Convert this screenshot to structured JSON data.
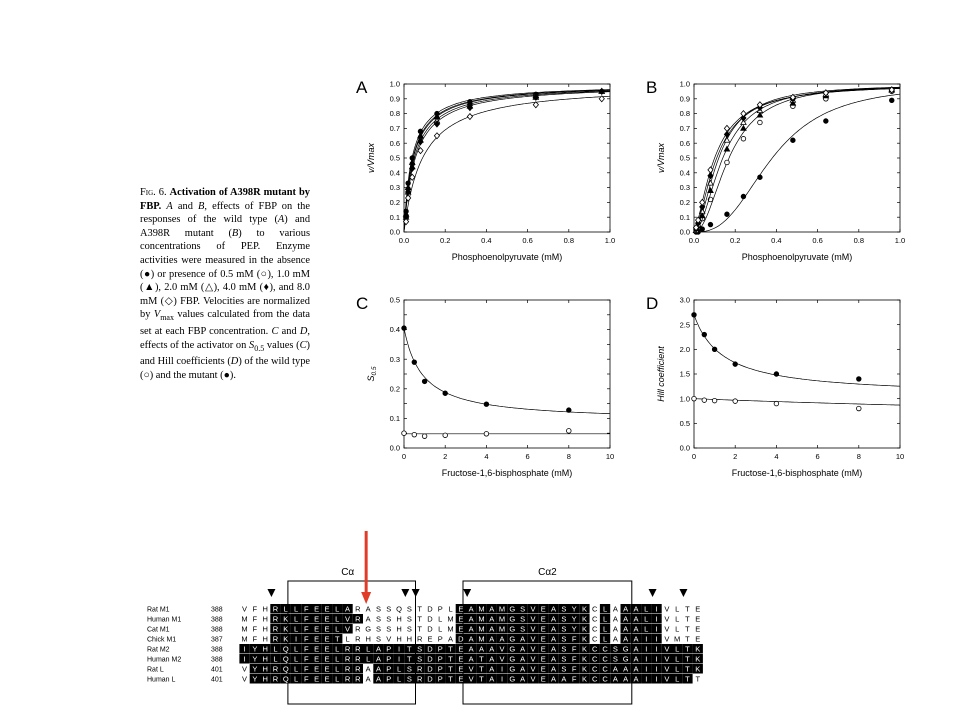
{
  "caption": {
    "fig_label": "Fig. 6.",
    "title": "Activation of A398R mutant by FBP.",
    "segments": [
      {
        "t": " "
      },
      {
        "t": "A",
        "i": 1
      },
      {
        "t": " and "
      },
      {
        "t": "B",
        "i": 1
      },
      {
        "t": ", effects of FBP on the responses of the wild type ("
      },
      {
        "t": "A",
        "i": 1
      },
      {
        "t": ") and A398R mutant ("
      },
      {
        "t": "B",
        "i": 1
      },
      {
        "t": ") to various concentrations of PEP. Enzyme activities were measured in the absence (●) or presence of 0.5 mM (○), 1.0 mM (▲), 2.0 mM (△), 4.0 mM (♦), and 8.0 mM (◇) FBP. Velocities are normalized by "
      },
      {
        "t": "V",
        "i": 1
      },
      {
        "t": "max",
        "sub": 1
      },
      {
        "t": " values calculated from the data set at each FBP concentration. "
      },
      {
        "t": "C",
        "i": 1
      },
      {
        "t": " and "
      },
      {
        "t": "D",
        "i": 1
      },
      {
        "t": ", effects of the activator on "
      },
      {
        "t": "S",
        "i": 1
      },
      {
        "t": "0.5",
        "sub": 1
      },
      {
        "t": " values ("
      },
      {
        "t": "C",
        "i": 1
      },
      {
        "t": ") and Hill coefficients ("
      },
      {
        "t": "D",
        "i": 1
      },
      {
        "t": ") of the wild type (○) and the mutant (●)."
      }
    ]
  },
  "chart_data": [
    {
      "panel": "A",
      "type": "scatter",
      "xlabel": "Phosphoenolpyruvate (mM)",
      "ylabel": "v/Vmax",
      "xlim": [
        0,
        1.0
      ],
      "ylim": [
        0,
        1.0
      ],
      "xticks": [
        0.0,
        0.2,
        0.4,
        0.6,
        0.8,
        1.0
      ],
      "yticks": [
        0.0,
        0.1,
        0.2,
        0.3,
        0.4,
        0.5,
        0.6,
        0.7,
        0.8,
        0.9,
        1.0
      ],
      "tick_decimals": 1,
      "curve": "hill",
      "x": [
        0.01,
        0.02,
        0.04,
        0.08,
        0.16,
        0.32,
        0.64,
        0.96
      ],
      "series": [
        {
          "marker": "filled-circle",
          "values": [
            0.14,
            0.33,
            0.5,
            0.68,
            0.8,
            0.88,
            0.93,
            0.95
          ],
          "fit": {
            "vmax": 1.0,
            "k": 0.039,
            "n": 1.0
          }
        },
        {
          "marker": "open-circle",
          "values": [
            0.11,
            0.29,
            0.46,
            0.64,
            0.77,
            0.86,
            0.92,
            0.95
          ],
          "fit": {
            "vmax": 1.0,
            "k": 0.045,
            "n": 1.0
          }
        },
        {
          "marker": "filled-triangle",
          "values": [
            0.12,
            0.3,
            0.47,
            0.65,
            0.78,
            0.87,
            0.92,
            0.95
          ],
          "fit": {
            "vmax": 1.0,
            "k": 0.043,
            "n": 1.0
          }
        },
        {
          "marker": "open-triangle",
          "values": [
            0.1,
            0.27,
            0.44,
            0.62,
            0.75,
            0.85,
            0.91,
            0.95
          ],
          "fit": {
            "vmax": 1.0,
            "k": 0.05,
            "n": 1.0
          }
        },
        {
          "marker": "filled-diamond",
          "values": [
            0.1,
            0.27,
            0.43,
            0.61,
            0.73,
            0.84,
            0.91,
            0.95
          ],
          "fit": {
            "vmax": 1.0,
            "k": 0.055,
            "n": 1.0
          }
        },
        {
          "marker": "open-diamond",
          "values": [
            0.07,
            0.23,
            0.37,
            0.55,
            0.65,
            0.78,
            0.86,
            0.9
          ],
          "fit": {
            "vmax": 1.0,
            "k": 0.09,
            "n": 1.0
          }
        }
      ]
    },
    {
      "panel": "B",
      "type": "scatter",
      "xlabel": "Phosphoenolpyruvate (mM)",
      "ylabel": "v/Vmax",
      "xlim": [
        0,
        1.0
      ],
      "ylim": [
        0,
        1.0
      ],
      "xticks": [
        0.0,
        0.2,
        0.4,
        0.6,
        0.8,
        1.0
      ],
      "yticks": [
        0.0,
        0.1,
        0.2,
        0.3,
        0.4,
        0.5,
        0.6,
        0.7,
        0.8,
        0.9,
        1.0
      ],
      "tick_decimals": 1,
      "curve": "hill",
      "x": [
        0.01,
        0.02,
        0.04,
        0.08,
        0.16,
        0.24,
        0.32,
        0.48,
        0.64,
        0.96
      ],
      "series": [
        {
          "marker": "filled-circle",
          "values": [
            0.0,
            0.0,
            0.02,
            0.05,
            0.12,
            0.24,
            0.37,
            0.62,
            0.75,
            0.89
          ],
          "fit": {
            "vmax": 1.0,
            "k": 0.38,
            "n": 2.7
          }
        },
        {
          "marker": "open-circle",
          "values": [
            0.01,
            0.03,
            0.09,
            0.22,
            0.47,
            0.63,
            0.74,
            0.85,
            0.9,
            0.95
          ],
          "fit": {
            "vmax": 1.0,
            "k": 0.17,
            "n": 2.1
          }
        },
        {
          "marker": "filled-triangle",
          "values": [
            0.01,
            0.04,
            0.11,
            0.28,
            0.56,
            0.7,
            0.79,
            0.87,
            0.92,
            0.96
          ],
          "fit": {
            "vmax": 1.0,
            "k": 0.14,
            "n": 1.9
          }
        },
        {
          "marker": "open-triangle",
          "values": [
            0.01,
            0.05,
            0.14,
            0.33,
            0.62,
            0.74,
            0.82,
            0.89,
            0.93,
            0.96
          ],
          "fit": {
            "vmax": 1.0,
            "k": 0.12,
            "n": 1.8
          }
        },
        {
          "marker": "filled-diamond",
          "values": [
            0.02,
            0.06,
            0.17,
            0.38,
            0.66,
            0.77,
            0.84,
            0.9,
            0.94,
            0.96
          ],
          "fit": {
            "vmax": 1.0,
            "k": 0.11,
            "n": 1.6
          }
        },
        {
          "marker": "open-diamond",
          "values": [
            0.03,
            0.08,
            0.2,
            0.42,
            0.7,
            0.8,
            0.86,
            0.91,
            0.94,
            0.96
          ],
          "fit": {
            "vmax": 1.0,
            "k": 0.1,
            "n": 1.5
          }
        }
      ]
    },
    {
      "panel": "C",
      "type": "scatter",
      "xlabel": "Fructose-1,6-bisphosphate (mM)",
      "ylabel": "S0.5",
      "xlim": [
        0,
        10
      ],
      "ylim": [
        0,
        0.5
      ],
      "xticks": [
        0,
        2,
        4,
        6,
        8,
        10
      ],
      "yticks": [
        0.0,
        0.05,
        0.1,
        0.15,
        0.2,
        0.25,
        0.3,
        0.35,
        0.4,
        0.45,
        0.5
      ],
      "tick_decimals": 0,
      "ytick_decimals": 2,
      "curve": "decay",
      "x": [
        0,
        0.5,
        1,
        2,
        4,
        8
      ],
      "series": [
        {
          "marker": "filled-circle",
          "values": [
            0.405,
            0.29,
            0.225,
            0.185,
            0.148,
            0.128
          ],
          "fit": {
            "base": 0.09,
            "amp": 0.315,
            "h": 0.9
          }
        },
        {
          "marker": "open-circle",
          "values": [
            0.05,
            0.045,
            0.04,
            0.043,
            0.048,
            0.058
          ],
          "fit": {
            "base": 0.048,
            "amp": 0.0,
            "h": 1.0
          }
        }
      ]
    },
    {
      "panel": "D",
      "type": "scatter",
      "xlabel": "Fructose-1,6-bisphosphate (mM)",
      "ylabel": "Hill coefficient",
      "xlim": [
        0,
        10
      ],
      "ylim": [
        0,
        3.0
      ],
      "xticks": [
        0,
        2,
        4,
        6,
        8,
        10
      ],
      "yticks": [
        0.0,
        0.5,
        1.0,
        1.5,
        2.0,
        2.5,
        3.0
      ],
      "tick_decimals": 0,
      "ytick_decimals": 1,
      "curve": "decay",
      "x": [
        0,
        0.5,
        1,
        2,
        4,
        8
      ],
      "series": [
        {
          "marker": "filled-circle",
          "values": [
            2.7,
            2.3,
            2.0,
            1.7,
            1.5,
            1.4
          ],
          "fit": {
            "base": 1.05,
            "amp": 1.65,
            "h": 1.4
          }
        },
        {
          "marker": "open-circle",
          "values": [
            1.0,
            0.97,
            0.96,
            0.95,
            0.9,
            0.8
          ],
          "fit": {
            "base": 0.35,
            "amp": 0.65,
            "h": 40.0
          }
        }
      ]
    }
  ],
  "alignment": {
    "helix_labels": [
      "Cα",
      "Cα2"
    ],
    "rows": [
      {
        "name": "Rat M1",
        "start": "388",
        "seq": "VFHRLLFEELARASSQSTDPLEAMAMGSVEASYKCLAAALIVLTE",
        "shade": "000111111110000000000111111111111101011110000"
      },
      {
        "name": "Human M1",
        "start": "388",
        "seq": "MFHRKLFEELVRASSHSTDLMEAMAMGSVEASYKCLAAALIVLTE",
        "shade": "000111111111000000000111111111111101011110000"
      },
      {
        "name": "Cat M1",
        "start": "388",
        "seq": "MFHRKLFEELVRGSSHSTDLMEAMAMGSVEASYKCLAAALIVLTE",
        "shade": "000111111110000000000111111111111101011110000"
      },
      {
        "name": "Chick M1",
        "start": "387",
        "seq": "MFHRKIFEETLRHSVHHREPADAMAAGAVEASFKCLAAAIIVMTE",
        "shade": "000111111100000000000111111111111101011110000"
      },
      {
        "name": "Rat M2",
        "start": "388",
        "seq": "IYHLQLFEELRRLAPITSDPTEAAAVGAVEASFKCCSGAIIVLTK",
        "shade": "111111111111111111111111111111111111111111111"
      },
      {
        "name": "Human M2",
        "start": "388",
        "seq": "IYHLQLFEELRRLAPITSDPTEATAVGAVEASFKCCSGAIIVLTK",
        "shade": "111111111111111111111111111111111111111111111"
      },
      {
        "name": "Rat L",
        "start": "401",
        "seq": "VYHRQLFEELRRAAPLSRDPTEVTAIGAVEASFKCCAAAIIVLTK",
        "shade": "011111111111011111111111111111111111111111111"
      },
      {
        "name": "Human L",
        "start": "401",
        "seq": "VYHRQLFEELRRAAPLSRDPTEVTAIGAVEAAFKCCAAAIIVLTT",
        "shade": "011111111111011111111111111111111111111111110"
      }
    ],
    "arrowhead_columns": [
      1,
      14,
      15,
      20,
      38,
      41
    ],
    "highlight_color": "#e03c28"
  }
}
